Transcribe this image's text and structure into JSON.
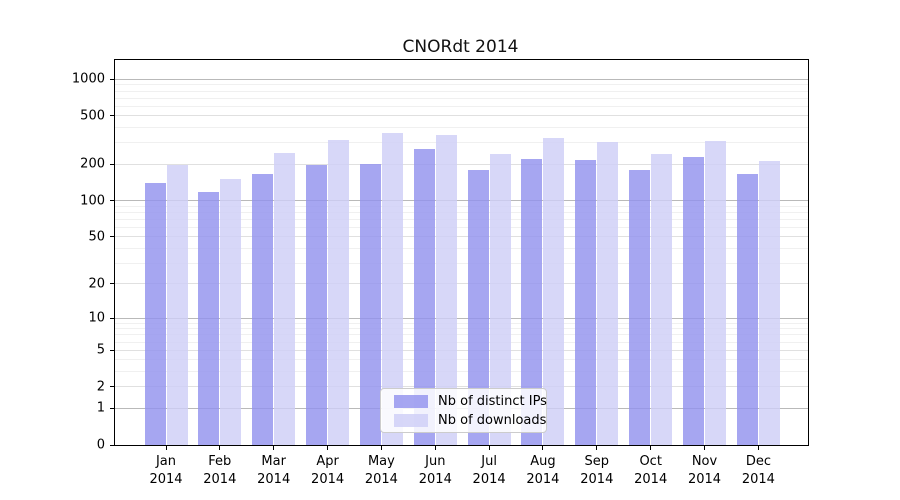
{
  "title": "CNORdt 2014",
  "chart_data": {
    "type": "bar",
    "title": "CNORdt 2014",
    "categories": [
      "Jan",
      "Feb",
      "Mar",
      "Apr",
      "May",
      "Jun",
      "Jul",
      "Aug",
      "Sep",
      "Oct",
      "Nov",
      "Dec"
    ],
    "x_year_label": "2014",
    "series": [
      {
        "name": "Nb of distinct IPs",
        "color": "#9292ee",
        "values": [
          141,
          117,
          167,
          198,
          202,
          265,
          178,
          221,
          216,
          178,
          231,
          165
        ]
      },
      {
        "name": "Nb of downloads",
        "color": "#cecef6",
        "values": [
          196,
          152,
          249,
          315,
          364,
          350,
          244,
          331,
          305,
          244,
          310,
          213
        ]
      }
    ],
    "y_ticks": [
      1000,
      500,
      200,
      100,
      50,
      20,
      10,
      5,
      2,
      1,
      0
    ],
    "y_scale": "log1p",
    "ylim": [
      0,
      1438
    ],
    "grid": true,
    "legend_position": "bottom-center",
    "colors": {
      "grid_major": "#b9b9b9",
      "grid_mid": "#e0e0e0",
      "grid_minor": "#f0f0f0",
      "axis": "#000000"
    }
  }
}
